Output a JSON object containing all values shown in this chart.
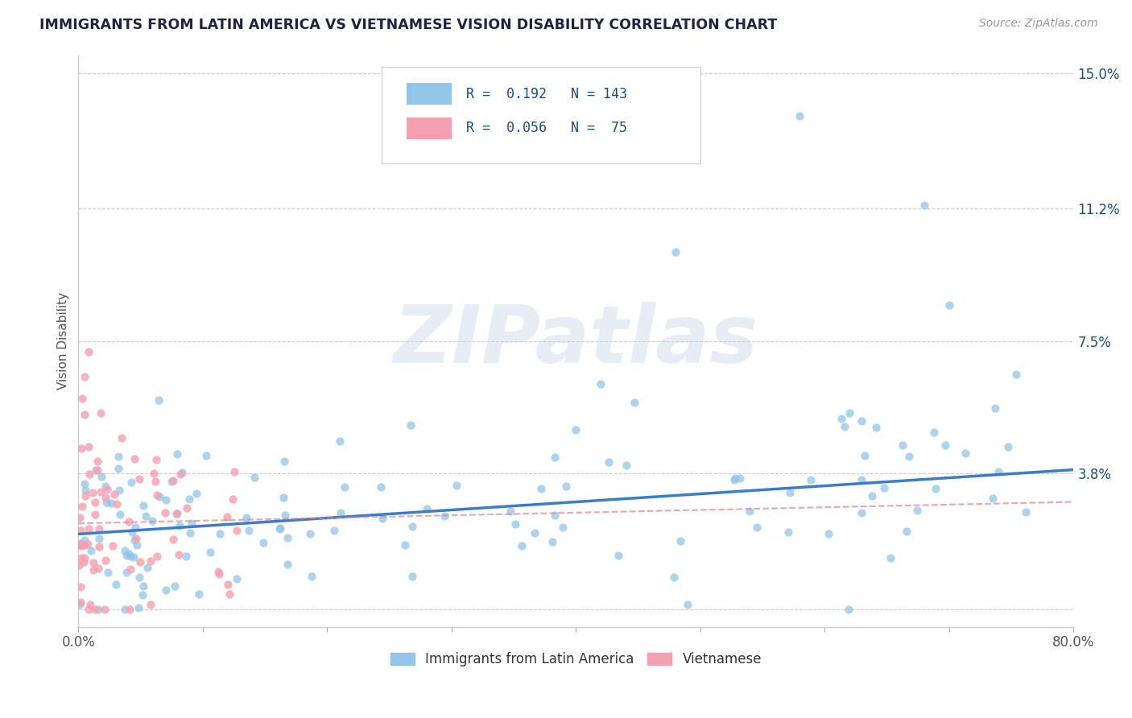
{
  "title": "IMMIGRANTS FROM LATIN AMERICA VS VIETNAMESE VISION DISABILITY CORRELATION CHART",
  "source": "Source: ZipAtlas.com",
  "ylabel": "Vision Disability",
  "xlim": [
    0.0,
    0.8
  ],
  "ylim": [
    -0.005,
    0.155
  ],
  "yticks": [
    0.0,
    0.038,
    0.075,
    0.112,
    0.15
  ],
  "ytick_labels": [
    "",
    "3.8%",
    "7.5%",
    "11.2%",
    "15.0%"
  ],
  "xticks": [
    0.0,
    0.1,
    0.2,
    0.3,
    0.4,
    0.5,
    0.6,
    0.7,
    0.8
  ],
  "blue_color": "#92C5E8",
  "blue_line_color": "#3A7DC9",
  "pink_color": "#F4A0B0",
  "pink_line_color": "#E08090",
  "blue_R": 0.192,
  "blue_N": 143,
  "pink_R": 0.056,
  "pink_N": 75,
  "legend_label_blue": "Immigrants from Latin America",
  "legend_label_pink": "Vietnamese",
  "watermark": "ZIPatlas",
  "title_color": "#222244",
  "axis_label_color": "#555555",
  "stat_text_color": "#1a5276",
  "background_color": "#ffffff",
  "grid_color": "#cccccc"
}
